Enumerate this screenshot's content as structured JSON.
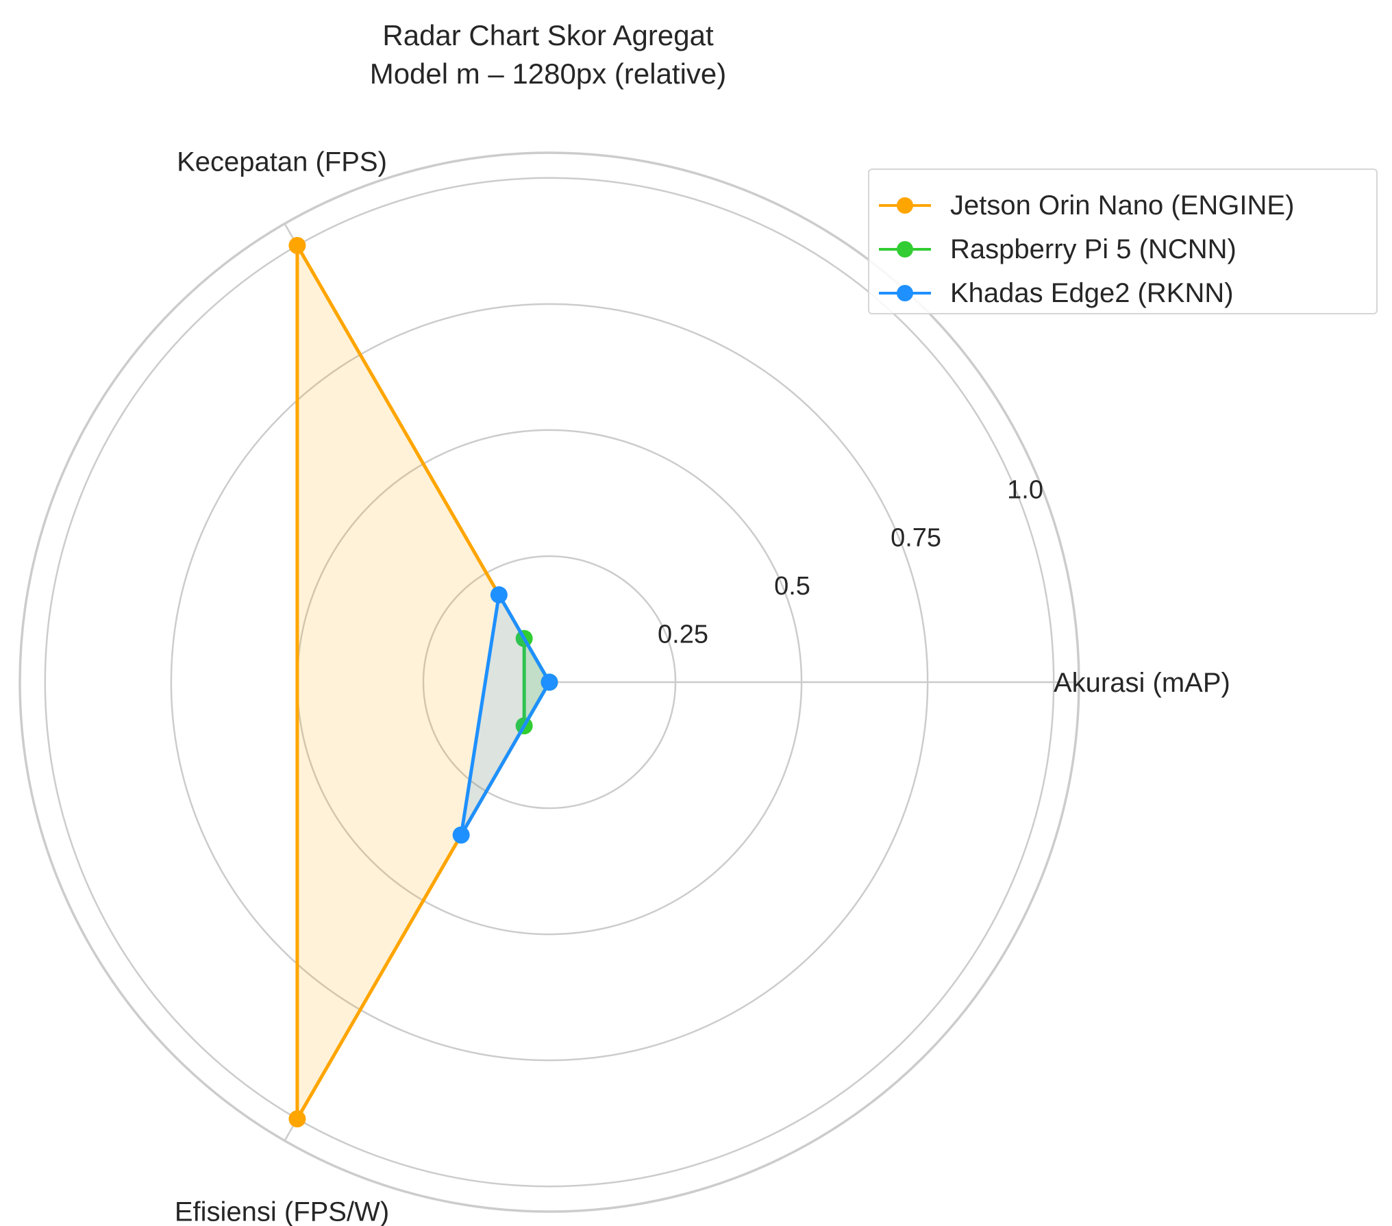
{
  "chart_data": {
    "type": "radar",
    "title": "Radar Chart Skor Agregat",
    "subtitle": "Model m – 1280px (relative)",
    "axes": [
      "Akurasi (mAP)",
      "Kecepatan (FPS)",
      "Efisiensi (FPS/W)"
    ],
    "radial_ticks": [
      {
        "value": 0.25,
        "label": "0.25"
      },
      {
        "value": 0.5,
        "label": "0.5"
      },
      {
        "value": 0.75,
        "label": "0.75"
      },
      {
        "value": 1.0,
        "label": "1.0"
      }
    ],
    "rlim": [
      0,
      1.05
    ],
    "grid": true,
    "legend_position": "top-right",
    "series": [
      {
        "name": "Jetson Orin Nano (ENGINE)",
        "color": "#ffa500",
        "values": [
          0.0,
          1.0,
          1.0
        ]
      },
      {
        "name": "Raspberry Pi 5 (NCNN)",
        "color": "#32cd32",
        "values": [
          0.0,
          0.1,
          0.1
        ]
      },
      {
        "name": "Khadas Edge2 (RKNN)",
        "color": "#1e90ff",
        "values": [
          0.0,
          0.2,
          0.35
        ]
      }
    ]
  }
}
